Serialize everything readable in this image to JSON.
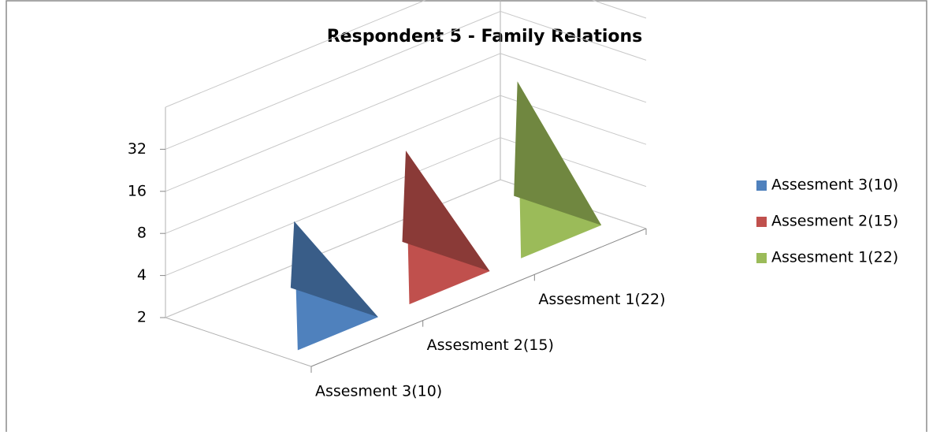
{
  "chart_data": {
    "type": "bar",
    "bar_shape": "pyramid",
    "title": "Respondent 5 - Family Relations",
    "categories": [
      "Assesment 3(10)",
      "Assesment 2(15)",
      "Assesment 1(22)"
    ],
    "series": [
      {
        "name": "Assesment 3(10)",
        "color": "#4f81bd",
        "values": [
          10,
          null,
          null
        ]
      },
      {
        "name": "Assesment 2(15)",
        "color": "#c0504d",
        "values": [
          null,
          15,
          null
        ]
      },
      {
        "name": "Assesment 1(22)",
        "color": "#9bbb59",
        "values": [
          null,
          null,
          22
        ]
      }
    ],
    "log_scale": true,
    "log_base": 2,
    "ylim": [
      2,
      64
    ],
    "yticks": [
      2,
      4,
      8,
      16,
      32
    ],
    "grid": true,
    "legend": "right"
  }
}
